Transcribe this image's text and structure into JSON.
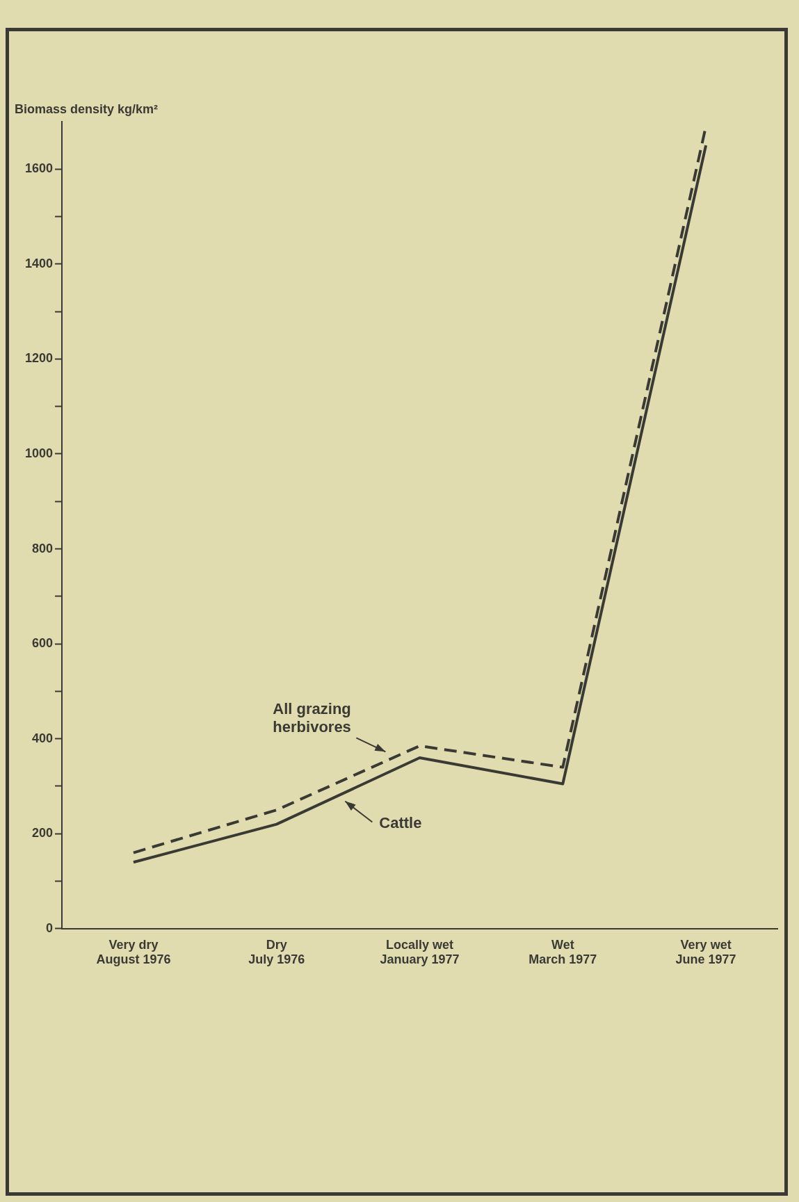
{
  "chart_data": {
    "type": "line",
    "ylabel": "Biomass density kg/km²",
    "categories": [
      "Very dry\nAugust 1976",
      "Dry\nJuly 1976",
      "Locally wet\nJanuary 1977",
      "Wet\nMarch 1977",
      "Very wet\nJune 1977"
    ],
    "series": [
      {
        "name": "All grazing herbivores",
        "color": "#3a3a34",
        "line_style": "dashed",
        "values": [
          160,
          250,
          385,
          340,
          1690
        ]
      },
      {
        "name": "Cattle",
        "color": "#3a3a34",
        "line_style": "solid",
        "values": [
          140,
          220,
          360,
          305,
          1650
        ]
      }
    ],
    "ylim": [
      0,
      1700
    ],
    "yticks": [
      0,
      {
        "value": 100,
        "label": null
      },
      200,
      {
        "value": 300,
        "label": null
      },
      400,
      {
        "value": 500,
        "label": null
      },
      600,
      {
        "value": 700,
        "label": null
      },
      800,
      {
        "value": 900,
        "label": null
      },
      1000,
      {
        "value": 1100,
        "label": null
      },
      1200,
      {
        "value": 1300,
        "label": null
      },
      1400,
      {
        "value": 1500,
        "label": null
      },
      1600
    ],
    "grid": false,
    "legend": false,
    "marker": "none"
  }
}
